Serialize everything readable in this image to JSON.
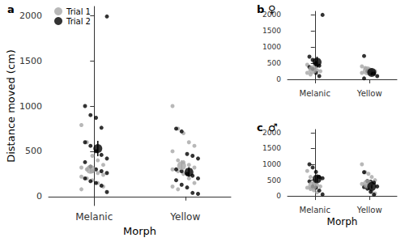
{
  "chart_data": [
    {
      "type": "scatter",
      "title": "a",
      "categories": [
        "Melanic",
        "Yellow"
      ],
      "xlabel": "Morph",
      "ylabel": "Distance moved (cm)",
      "ylim": [
        -100,
        2100
      ],
      "yticks": [
        0,
        500,
        1000,
        1500,
        2000
      ],
      "grid": false,
      "legend": "top-left",
      "series": [
        {
          "name": "Trial 1",
          "color": "#a6a6a6",
          "values": [
            300,
            340
          ],
          "errors": [
            40,
            60
          ],
          "points": [
            [
              790,
              600,
              450,
              400,
              350,
              320,
              300,
              280,
              260,
              240,
              220,
              200,
              180,
              150,
              110,
              80
            ],
            [
              1000,
              750,
              700,
              600,
              560,
              500,
              400,
              380,
              350,
              320,
              300,
              280,
              250,
              200,
              150,
              110,
              80
            ]
          ]
        },
        {
          "name": "Trial 2",
          "color": "#000000",
          "values": [
            530,
            270
          ],
          "errors": [
            85,
            55
          ],
          "points": [
            [
              1000,
              900,
              870,
              760,
              1990,
              600,
              560,
              500,
              460,
              420,
              380,
              330,
              300,
              280,
              260,
              200,
              170,
              150,
              120,
              50
            ],
            [
              750,
              720,
              470,
              450,
              420,
              300,
              280,
              250,
              230,
              200,
              180,
              130,
              100,
              40,
              30
            ]
          ]
        }
      ]
    },
    {
      "type": "scatter",
      "title": "b",
      "subtitle": "♀",
      "categories": [
        "Melanic",
        "Yellow"
      ],
      "ylim": [
        -100,
        2100
      ],
      "yticks": [
        0,
        500,
        1000,
        1500,
        2000
      ],
      "grid": false,
      "series": [
        {
          "name": "Trial 1",
          "color": "#a6a6a6",
          "values": [
            300,
            260
          ],
          "errors": [
            45,
            35
          ],
          "points": [
            [
              450,
              350,
              300,
              280,
              250,
              200,
              150
            ],
            [
              400,
              350,
              300,
              280,
              250,
              200
            ]
          ]
        },
        {
          "name": "Trial 2",
          "color": "#000000",
          "values": [
            530,
            210
          ],
          "errors": [
            170,
            90
          ],
          "points": [
            [
              700,
              600,
              500,
              420,
              1990,
              380,
              320,
              200,
              100
            ],
            [
              720,
              250,
              200,
              180,
              100,
              30
            ]
          ]
        }
      ]
    },
    {
      "type": "scatter",
      "title": "c",
      "subtitle": "♂",
      "categories": [
        "Melanic",
        "Yellow"
      ],
      "xlabel": "Morph",
      "ylim": [
        -100,
        2100
      ],
      "yticks": [
        0,
        500,
        1000,
        1500,
        2000
      ],
      "grid": false,
      "series": [
        {
          "name": "Trial 1",
          "color": "#a6a6a6",
          "values": [
            330,
            380
          ],
          "errors": [
            65,
            85
          ],
          "points": [
            [
              790,
              600,
              400,
              350,
              300,
              260,
              220,
              180,
              110
            ],
            [
              1000,
              750,
              700,
              600,
              500,
              380,
              320,
              250,
              150,
              80
            ]
          ]
        },
        {
          "name": "Trial 2",
          "color": "#000000",
          "values": [
            540,
            300
          ],
          "errors": [
            110,
            75
          ],
          "points": [
            [
              1000,
              900,
              760,
              600,
              560,
              460,
              300,
              260,
              170,
              50
            ],
            [
              750,
              470,
              450,
              420,
              300,
              280,
              230,
              130,
              40
            ]
          ]
        }
      ]
    }
  ]
}
